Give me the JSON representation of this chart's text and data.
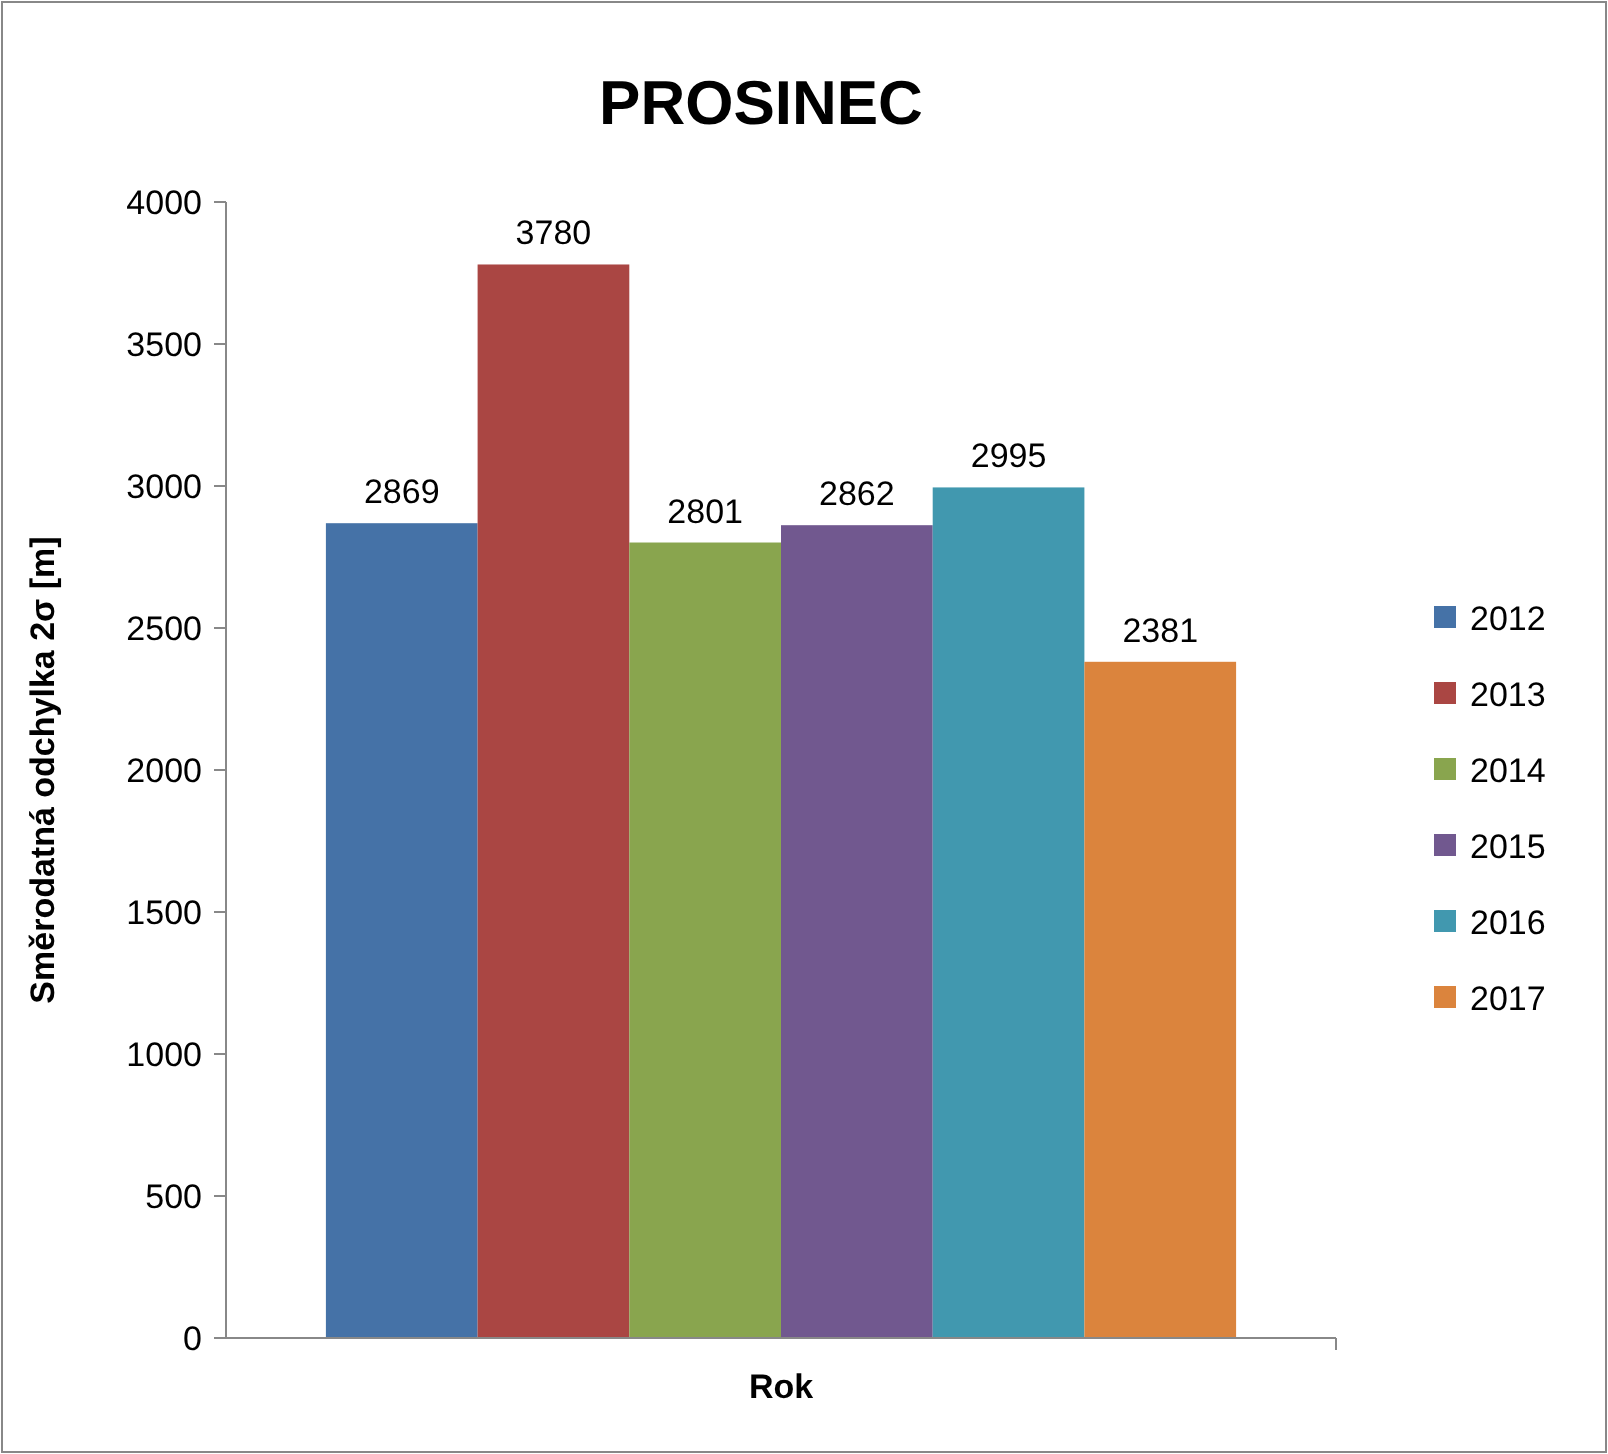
{
  "chart_data": {
    "type": "bar",
    "title": "PROSINEC",
    "xlabel": "Rok",
    "ylabel": "Směrodatná odchylka 2σ [m]",
    "categories": [
      null
    ],
    "series": [
      {
        "name": "2012",
        "color": "#4572a7",
        "values": [
          2869
        ]
      },
      {
        "name": "2013",
        "color": "#aa4643",
        "values": [
          3780
        ]
      },
      {
        "name": "2014",
        "color": "#89a54e",
        "values": [
          2801
        ]
      },
      {
        "name": "2015",
        "color": "#71588f",
        "values": [
          2862
        ]
      },
      {
        "name": "2016",
        "color": "#4198af",
        "values": [
          2995
        ]
      },
      {
        "name": "2017",
        "color": "#db843d",
        "values": [
          2381
        ]
      }
    ],
    "ylim": [
      0,
      4000
    ],
    "yticks": [
      0,
      500,
      1000,
      1500,
      2000,
      2500,
      3000,
      3500,
      4000
    ],
    "data_labels": true,
    "legend": "right",
    "grid": false
  }
}
